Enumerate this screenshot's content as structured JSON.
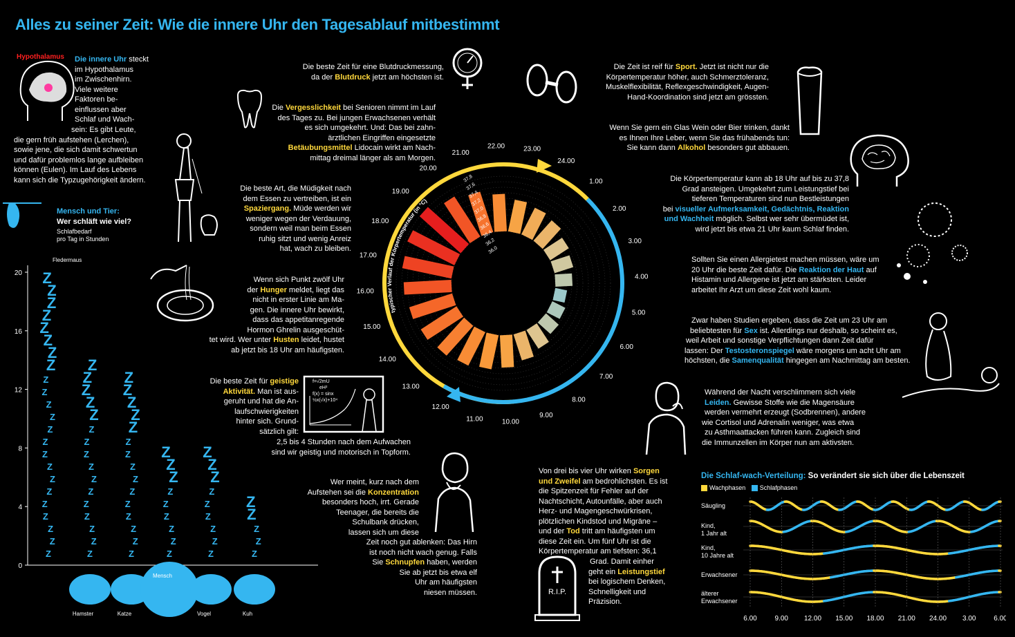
{
  "title": "Alles zu seiner Zeit: Wie die innere Uhr den Tagesablauf mitbestimmt",
  "colors": {
    "accent_blue": "#35b6f0",
    "accent_yellow": "#ffd83c",
    "accent_red": "#ff2020",
    "background": "#000000"
  },
  "intro": {
    "label": "Hypothalamus",
    "lead": "Die innere Uhr",
    "text_1": " steckt",
    "line_2": "im Hypothalamus",
    "line_3": "im Zwischenhirn.",
    "line_4": "Viele weitere",
    "line_5": "Faktoren be-",
    "line_6": "einflussen aber",
    "line_7": "Schlaf und Wach-",
    "line_8": "sein: Es gibt Leute,",
    "line_9": "die gern früh aufstehen (Lerchen),",
    "line_10": "sowie jene, die sich damit schwertun",
    "line_11": "und dafür problemlos lange aufbleiben",
    "line_12": "können (Eulen). Im Lauf des Lebens",
    "line_13": "kann sich die Typzugehörigkeit ändern."
  },
  "animals": {
    "heading_1": "Mensch und Tier:",
    "heading_2": "Wer schläft wie viel?",
    "sub_1": "Schlafbedarf",
    "sub_2": "pro Tag in Stunden",
    "y_ticks": [
      "20",
      "16",
      "12",
      "8",
      "4",
      "0"
    ],
    "names": [
      "Fledermaus",
      "Hamster",
      "Katze",
      "Mensch",
      "Vogel",
      "Kuh"
    ]
  },
  "chart_data": [
    {
      "type": "bar",
      "title": "Mensch und Tier: Wer schläft wie viel?",
      "ylabel": "Schlafbedarf pro Tag in Stunden",
      "categories": [
        "Fledermaus",
        "Hamster",
        "Katze",
        "Mensch",
        "Vogel",
        "Kuh"
      ],
      "values": [
        20,
        14,
        13,
        8,
        8,
        4
      ],
      "ylim": [
        0,
        20
      ]
    },
    {
      "type": "bar",
      "title": "typischer Verlauf der Körpertemperatur (in °C)",
      "layout": "radial",
      "hours": [
        "17.00",
        "18.00",
        "19.00",
        "20.00",
        "21.00",
        "22.00",
        "23.00",
        "24.00",
        "1.00",
        "2.00",
        "3.00",
        "4.00",
        "5.00",
        "6.00",
        "7.00",
        "8.00",
        "9.00",
        "10.00",
        "11.00",
        "12.00",
        "13.00",
        "14.00",
        "15.00",
        "16.00"
      ],
      "values": [
        37.6,
        37.7,
        37.8,
        37.5,
        37.3,
        37.1,
        36.9,
        36.8,
        36.7,
        36.5,
        36.4,
        36.3,
        36.1,
        36.2,
        36.3,
        36.5,
        36.7,
        36.9,
        37.0,
        37.1,
        37.2,
        37.3,
        37.4,
        37.5
      ],
      "temperature_scale": [
        "37,8",
        "37,6",
        "37,4",
        "37,2",
        "37,0",
        "36,8",
        "36,6",
        "36,4",
        "36,2",
        "36,0"
      ]
    },
    {
      "type": "line",
      "title": "Die Schlaf-wach-Verteilung: So verändert sie sich über die Lebenszeit",
      "series_labels": [
        "Wachphasen",
        "Schlafphasen"
      ],
      "rows": [
        "Säugling",
        "Kind, 1 Jahr alt",
        "Kind, 10 Jahre alt",
        "Erwachsener",
        "älterer Erwachsener"
      ],
      "x_ticks": [
        "6.00",
        "9.00",
        "12.00",
        "15.00",
        "18.00",
        "21.00",
        "24.00",
        "3.00",
        "6.00"
      ]
    }
  ],
  "clock": {
    "axis_label": "typischer Verlauf der Körpertemperatur (in °C)",
    "hour_labels": [
      "17.00",
      "18.00",
      "19.00",
      "20.00",
      "21.00",
      "22.00",
      "23.00",
      "24.00",
      "1.00",
      "2.00",
      "3.00",
      "4.00",
      "5.00",
      "6.00",
      "7.00",
      "8.00",
      "9.00",
      "10.00",
      "11.00",
      "12.00",
      "13.00",
      "14.00",
      "15.00",
      "16.00"
    ]
  },
  "blocks": {
    "blutdruck": {
      "l1": "Die beste Zeit für eine Blutdruckmessung,",
      "l2a": "da der ",
      "l2b": "Blutdruck",
      "l2c": " jetzt am höchsten ist."
    },
    "vergess": {
      "l1a": "Die ",
      "l1b": "Vergesslichkeit",
      "l1c": " bei Senioren nimmt im Lauf",
      "l2": "des Tages zu. Bei jungen Erwachsenen verhält",
      "l3": "es sich umgekehrt. Und: Das bei zahn-",
      "l4": "ärztlichen Eingriffen eingesetzte",
      "l5a": "Betäubungsmittel",
      "l5b": " Lidocain wirkt am Nach-",
      "l6": "mittag dreimal länger als am Morgen."
    },
    "spazier": {
      "l1": "Die beste Art, die Müdigkeit nach",
      "l2": "dem Essen zu vertreiben, ist ein",
      "l3a": "Spaziergang.",
      "l3b": " Müde werden wir",
      "l4": "weniger wegen der Verdauung,",
      "l5": "sondern weil man beim Essen",
      "l6": "ruhig sitzt und wenig Anreiz",
      "l7": "hat, wach zu bleiben."
    },
    "hunger": {
      "l1": "Wenn sich Punkt zwölf Uhr",
      "l2a": "der ",
      "l2b": "Hunger",
      "l2c": " meldet, liegt das",
      "l3": "nicht in erster Linie am Ma-",
      "l4": "gen. Die innere Uhr bewirkt,",
      "l5": "dass das appetitanregende",
      "l6": "Hormon Ghrelin ausgeschüt-",
      "l7a": "tet wird. Wer unter ",
      "l7b": "Husten",
      "l7c": " leidet, hustet",
      "l8": "ab jetzt bis 18 Uhr am häufigsten."
    },
    "geistig": {
      "l1a": "Die beste Zeit für ",
      "l1b": "geistige",
      "l2a": "Aktivität.",
      "l2b": " Man ist aus-",
      "l3": "geruht und hat die An-",
      "l4": "laufschwierigkeiten",
      "l5": "hinter sich. Grund-",
      "l6": "sätzlich gilt:",
      "l7": "2,5 bis 4 Stunden nach dem Aufwachen",
      "l8": "sind wir geistig und motorisch in Topform."
    },
    "konzentration": {
      "l1": "Wer meint, kurz nach dem",
      "l2a": "Aufstehen sei die ",
      "l2b": "Konzentration",
      "l3": "besonders hoch, irrt. Gerade",
      "l4": "Teenager, die bereits die",
      "l5": "Schulbank drücken,",
      "l6": "lassen sich um diese",
      "l7": "Zeit noch gut ablenken: Das Hirn",
      "l8": "ist noch nicht wach genug. Falls",
      "l9a": "Sie ",
      "l9b": "Schnupfen",
      "l9c": " haben, werden",
      "l10": "Sie ab jetzt bis etwa elf",
      "l11": "Uhr am häufigsten",
      "l12": "niesen müssen."
    },
    "sport": {
      "l1a": "Die Zeit ist reif für ",
      "l1b": "Sport.",
      "l1c": " Jetzt ist nicht nur die",
      "l2": "Körpertemperatur höher, auch Schmerztoleranz,",
      "l3": "Muskelflexibilität, Reflexgeschwindigkeit, Augen-",
      "l4": "Hand-Koordination sind jetzt am grössten."
    },
    "alkohol": {
      "l1": "Wenn Sie gern ein Glas Wein oder Bier trinken, dankt",
      "l2": "es Ihnen Ihre Leber, wenn Sie das frühabends tun:",
      "l3a": "Sie kann dann ",
      "l3b": "Alkohol",
      "l3c": " besonders gut abbauen."
    },
    "temp": {
      "l1": "Die Körpertemperatur kann ab 18 Uhr auf bis zu 37,8",
      "l2": "Grad ansteigen. Umgekehrt zum Leistungstief bei",
      "l3": "tieferen Temperaturen sind nun Bestleistungen",
      "l4a": "bei ",
      "l4b": "visueller Aufmerksamkeit, Gedächtnis, Reaktion",
      "l5a": "und Wachheit",
      "l5b": " möglich. Selbst wer sehr übermüdet ist,",
      "l6": "wird jetzt bis etwa 21 Uhr kaum Schlaf finden."
    },
    "allergie": {
      "l1": "Sollten Sie einen Allergietest machen müssen, wäre um",
      "l2a": "20 Uhr die beste Zeit dafür. Die ",
      "l2b": "Reaktion der Haut",
      "l2c": " auf",
      "l3": "Histamin und Allergene ist jetzt am stärksten. Leider",
      "l4": "arbeitet Ihr Arzt um diese Zeit wohl kaum."
    },
    "sex": {
      "l1": "Zwar haben Studien ergeben, dass die Zeit um 23 Uhr am",
      "l2a": "beliebtesten für ",
      "l2b": "Sex",
      "l2c": " ist. Allerdings nur deshalb, so scheint es,",
      "l3": "weil Arbeit und sonstige Verpflichtungen dann Zeit dafür",
      "l4a": "lassen: Der ",
      "l4b": "Testosteronspiegel",
      "l4c": " wäre morgens um acht Uhr am",
      "l5a": "höchsten, die ",
      "l5b": "Samenqualität",
      "l5c": " hingegen am Nachmittag am besten."
    },
    "leiden": {
      "l1": "Während der Nacht verschlimmern sich viele",
      "l2a": "Leiden.",
      "l2b": " Gewisse Stoffe wie die Magensäure",
      "l3": "werden vermehrt erzeugt (Sodbrennen), andere",
      "l4": "wie Cortisol und Adrenalin weniger, was etwa",
      "l5": "zu Asthmaattacken führen kann. Zugleich sind",
      "l6": "die Immunzellen im Körper nun am aktivsten."
    },
    "sorgen": {
      "l1a": "Von drei bis vier Uhr wirken ",
      "l1b": "Sorgen",
      "l2a": "und Zweifel",
      "l2b": " am bedrohlichsten. Es ist",
      "l3": "die Spitzenzeit für Fehler auf der",
      "l4": "Nachtschicht, Autounfälle, aber auch",
      "l5": "Herz- und Magengeschwürkrisen,",
      "l6": "plötzlichen Kindstod und Migräne –",
      "l7a": "und der ",
      "l7b": "Tod",
      "l7c": " tritt am häufigsten um",
      "l8": "diese Zeit ein. Um fünf Uhr ist die",
      "l9": "Körpertemperatur am tiefsten: 36,1",
      "l10": "Grad. Damit einher",
      "l11a": "geht ein ",
      "l11b": "Leistungstief",
      "l12": "bei logischem Denken,",
      "l13": "Schnelligkeit und",
      "l14": "Präzision."
    }
  },
  "rip": "R.I.P.",
  "formula": {
    "l1": "f=√2mU",
    "l2": "eH²",
    "l3": "f(x) = sinx",
    "l4": "½x(√x)+10⁴"
  },
  "sleepwake": {
    "heading_a": "Die Schlaf-wach-Verteilung:",
    "heading_b": " So verändert sie sich über die Lebenszeit",
    "legend_wake": "Wachphasen",
    "legend_sleep": "Schlafphasen",
    "rows": [
      {
        "l1": "Säugling",
        "l2": ""
      },
      {
        "l1": "Kind,",
        "l2": "1 Jahr alt"
      },
      {
        "l1": "Kind,",
        "l2": "10 Jahre alt"
      },
      {
        "l1": "Erwachsener",
        "l2": ""
      },
      {
        "l1": "älterer",
        "l2": "Erwachsener"
      }
    ],
    "x_ticks": [
      "6.00",
      "9.00",
      "12.00",
      "15.00",
      "18.00",
      "21.00",
      "24.00",
      "3.00",
      "6.00"
    ]
  }
}
